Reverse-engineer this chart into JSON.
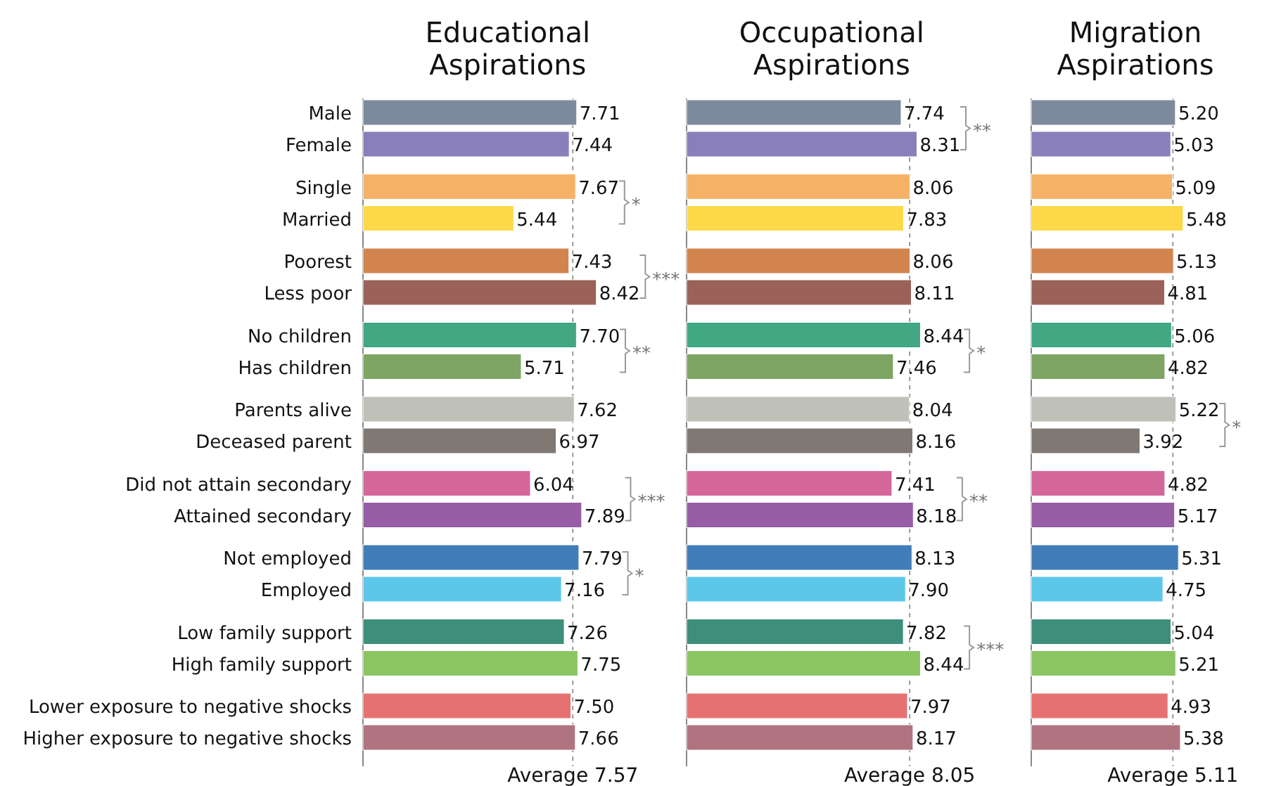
{
  "chart_data": [
    {
      "type": "bar",
      "orientation": "horizontal",
      "title": "Educational Aspirations",
      "categories": [
        "Male",
        "Female",
        "Single",
        "Married",
        "Poorest",
        "Less poor",
        "No children",
        "Has children",
        "Parents alive",
        "Deceased parent",
        "Did not attain secondary",
        "Attained secondary",
        "Not employed",
        "Employed",
        "Low family support",
        "High family support",
        "Lower exposure to negative shocks",
        "Higher exposure to negative shocks"
      ],
      "values": [
        7.71,
        7.44,
        7.67,
        5.44,
        7.43,
        8.42,
        7.7,
        5.71,
        7.62,
        6.97,
        6.04,
        7.89,
        7.79,
        7.16,
        7.26,
        7.75,
        7.5,
        7.66
      ],
      "value_labels": [
        "7.71",
        "7.44",
        "7.67",
        "5.44",
        "7.43",
        "8.42",
        "7.70",
        "5.71",
        "7.62",
        "6.97",
        "6.04",
        "7.89",
        "7.79",
        "7.16",
        "7.26",
        "7.75",
        "7.50",
        "7.66"
      ],
      "colors": [
        "#7d8a9e",
        "#897fba",
        "#f5b266",
        "#fdd94a",
        "#d2844e",
        "#9b625a",
        "#41a883",
        "#7ea563",
        "#bfc1b8",
        "#807873",
        "#d4679a",
        "#975ea5",
        "#417db9",
        "#5dc7ea",
        "#3e8e7c",
        "#8bc562",
        "#e67171",
        "#b07480"
      ],
      "tick_labels": "y",
      "ref_lines": [
        {
          "axis": "x",
          "value": 7.57,
          "label": "Average 7.57",
          "line_style": "dashed",
          "color": "#999999"
        }
      ],
      "annotations": [
        "*",
        "***",
        "**",
        "***",
        "*"
      ]
    },
    {
      "type": "bar",
      "orientation": "horizontal",
      "title": "Occupational Aspirations",
      "values": [
        7.74,
        8.31,
        8.06,
        7.83,
        8.06,
        8.11,
        8.44,
        7.46,
        8.04,
        8.16,
        7.41,
        8.18,
        8.13,
        7.9,
        7.82,
        8.44,
        7.97,
        8.17
      ],
      "value_labels": [
        "7.74",
        "8.31",
        "8.06",
        "7.83",
        "8.06",
        "8.11",
        "8.44",
        "7.46",
        "8.04",
        "8.16",
        "7.41",
        "8.18",
        "8.13",
        "7.90",
        "7.82",
        "8.44",
        "7.97",
        "8.17"
      ],
      "colors": [
        "#7d8a9e",
        "#897fba",
        "#f5b266",
        "#fdd94a",
        "#d2844e",
        "#9b625a",
        "#41a883",
        "#7ea563",
        "#bfc1b8",
        "#807873",
        "#d4679a",
        "#975ea5",
        "#417db9",
        "#5dc7ea",
        "#3e8e7c",
        "#8bc562",
        "#e67171",
        "#b07480"
      ],
      "tick_labels": false,
      "ref_lines": [
        {
          "axis": "x",
          "value": 8.05,
          "label": "Average 8.05",
          "line_style": "dashed",
          "color": "#999999"
        }
      ],
      "annotations": [
        "**",
        "*",
        "**",
        "***"
      ]
    },
    {
      "type": "bar",
      "orientation": "horizontal",
      "title": "Migration Aspirations",
      "values": [
        5.2,
        5.03,
        5.09,
        5.48,
        5.13,
        4.81,
        5.06,
        4.82,
        5.22,
        3.92,
        4.82,
        5.17,
        5.31,
        4.75,
        5.04,
        5.21,
        4.93,
        5.38
      ],
      "value_labels": [
        "5.20",
        "5.03",
        "5.09",
        "5.48",
        "5.13",
        "4.81",
        "5.06",
        "4.82",
        "5.22",
        "3.92",
        "4.82",
        "5.17",
        "5.31",
        "4.75",
        "5.04",
        "5.21",
        "4.93",
        "5.38"
      ],
      "colors": [
        "#7d8a9e",
        "#897fba",
        "#f5b266",
        "#fdd94a",
        "#d2844e",
        "#9b625a",
        "#41a883",
        "#7ea563",
        "#bfc1b8",
        "#807873",
        "#d4679a",
        "#975ea5",
        "#417db9",
        "#5dc7ea",
        "#3e8e7c",
        "#8bc562",
        "#e67171",
        "#b07480"
      ],
      "tick_labels": false,
      "ref_lines": [
        {
          "axis": "x",
          "value": 5.11,
          "label": "Average 5.11",
          "line_style": "dashed",
          "color": "#999999"
        }
      ],
      "annotations": [
        "*"
      ]
    }
  ]
}
